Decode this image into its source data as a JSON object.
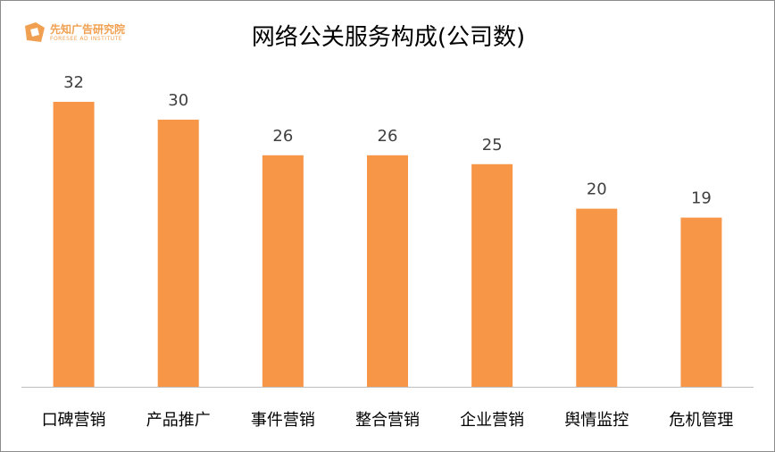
{
  "logo": {
    "name_cn": "先知广告研究院",
    "name_en": "FORESEE AD INSTITUTE"
  },
  "colors": {
    "bar": "#f79646",
    "axis": "#bfbfbf",
    "logo": "#f0a050"
  },
  "chart_data": {
    "type": "bar",
    "title": "网络公关服务构成(公司数)",
    "categories": [
      "口碑营销",
      "产品推广",
      "事件营销",
      "整合营销",
      "企业营销",
      "舆情监控",
      "危机管理"
    ],
    "values": [
      32,
      30,
      26,
      26,
      25,
      20,
      19
    ],
    "xlabel": "",
    "ylabel": "",
    "ylim": [
      0,
      32
    ],
    "grid": false,
    "legend": "none",
    "data_labels": true
  }
}
